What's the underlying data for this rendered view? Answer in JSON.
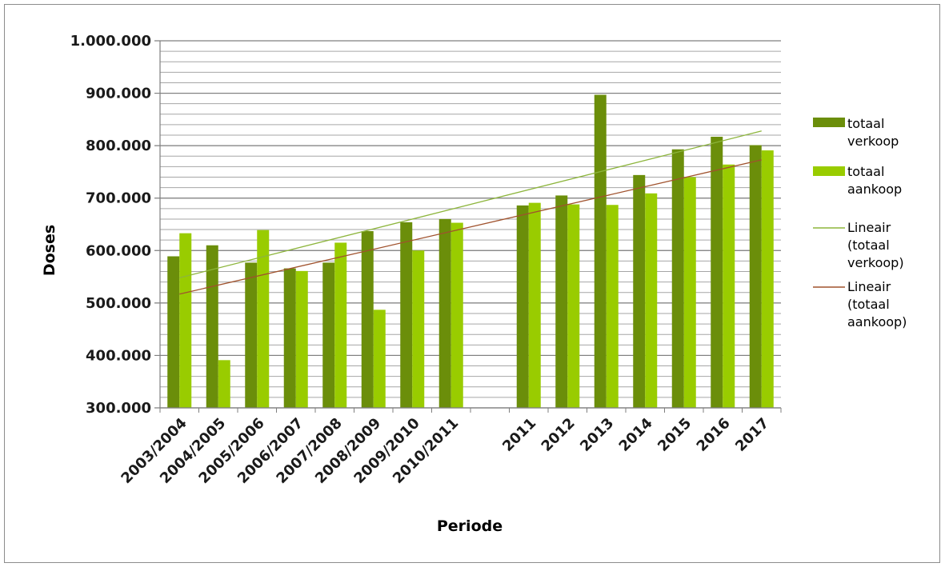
{
  "chart_data": {
    "type": "bar",
    "title": "",
    "xlabel": "Periode",
    "ylabel": "Doses",
    "ylim": [
      300000,
      1000000
    ],
    "y_ticks": [
      {
        "value": 300000,
        "label": "300.000"
      },
      {
        "value": 400000,
        "label": "400.000"
      },
      {
        "value": 500000,
        "label": "500.000"
      },
      {
        "value": 600000,
        "label": "600.000"
      },
      {
        "value": 700000,
        "label": "700.000"
      },
      {
        "value": 800000,
        "label": "800.000"
      },
      {
        "value": 900000,
        "label": "900.000"
      },
      {
        "value": 1000000,
        "label": "1.000.000"
      }
    ],
    "grid": true,
    "legend_position": "right",
    "categories": [
      "2003/2004",
      "2004/2005",
      "2005/2006",
      "2006/2007",
      "2007/2008",
      "2008/2009",
      "2009/2010",
      "2010/2011",
      "",
      "2011",
      "2012",
      "2013",
      "2014",
      "2015",
      "2016",
      "2017"
    ],
    "series": [
      {
        "name": "totaal verkoop",
        "legend_lines": [
          "totaal",
          "verkoop"
        ],
        "color": "#6b8e0a",
        "values": [
          589000,
          610000,
          577000,
          566000,
          577000,
          637000,
          654000,
          660000,
          null,
          686000,
          705000,
          897000,
          744000,
          793000,
          817000,
          801000
        ]
      },
      {
        "name": "totaal aankoop",
        "legend_lines": [
          "totaal",
          "aankoop"
        ],
        "color": "#99cc00",
        "values": [
          633000,
          391000,
          639000,
          561000,
          615000,
          487000,
          600000,
          653000,
          null,
          691000,
          688000,
          687000,
          709000,
          740000,
          764000,
          791000
        ]
      }
    ],
    "trendlines": [
      {
        "name": "Lineair (totaal verkoop)",
        "legend_lines": [
          "Lineair",
          "(totaal",
          "verkoop)"
        ],
        "color": "#8db53c",
        "start": 548000,
        "end": 828000
      },
      {
        "name": "Lineair (totaal aankoop)",
        "legend_lines": [
          "Lineair",
          "(totaal",
          "aankoop)"
        ],
        "color": "#a0522d",
        "start": 517000,
        "end": 773000
      }
    ]
  }
}
